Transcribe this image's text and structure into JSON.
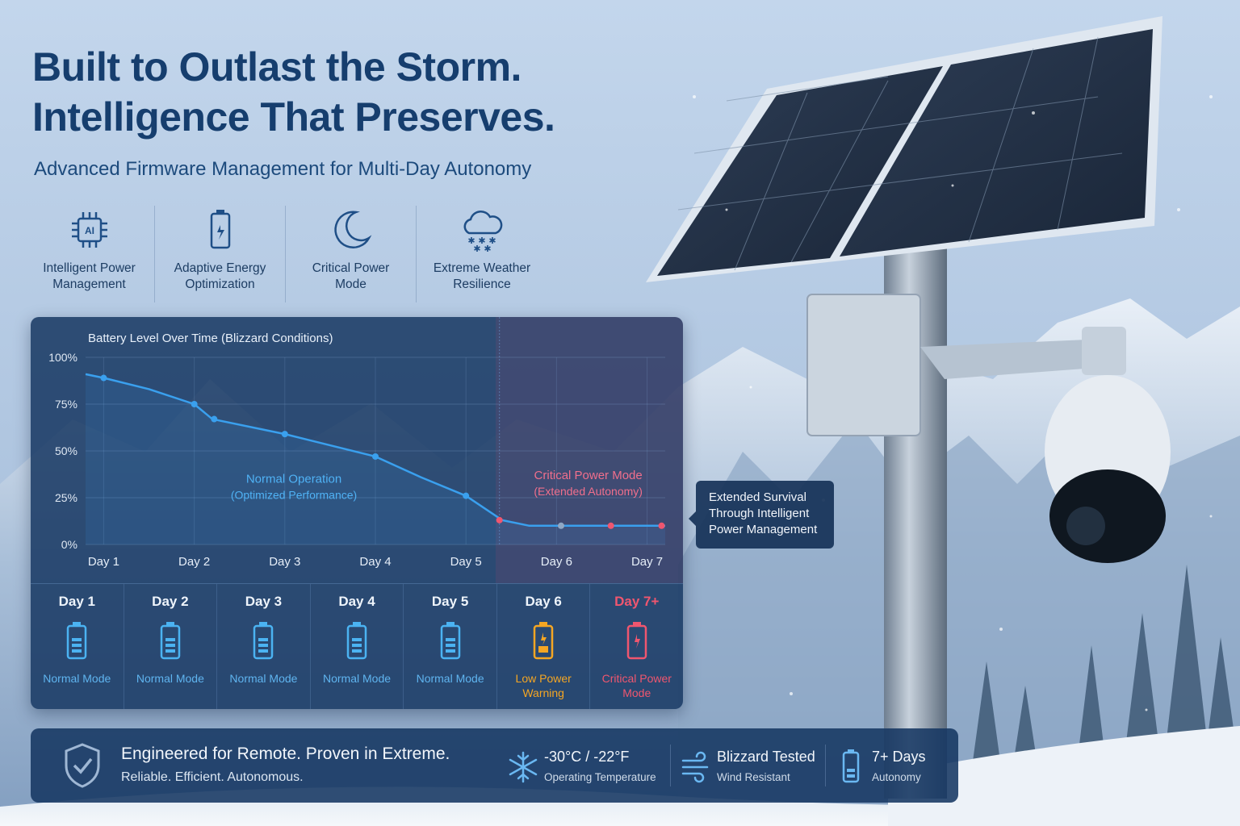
{
  "headline": {
    "line1": "Built to Outlast the Storm.",
    "line2": "Intelligence That Preserves."
  },
  "subheadline": "Advanced Firmware Management for Multi-Day Autonomy",
  "features": [
    {
      "icon": "ai-chip-icon",
      "line1": "Intelligent Power",
      "line2": "Management"
    },
    {
      "icon": "battery-icon",
      "line1": "Adaptive Energy",
      "line2": "Optimization"
    },
    {
      "icon": "crescent-moon-icon",
      "line1": "Critical Power",
      "line2": "Mode"
    },
    {
      "icon": "snow-cloud-icon",
      "line1": "Extreme Weather",
      "line2": "Resilience"
    }
  ],
  "chart_data": {
    "type": "line",
    "title": "Battery Level Over Time (Blizzard Conditions)",
    "x_ticks": [
      "Day 1",
      "Day 2",
      "Day 3",
      "Day 4",
      "Day 5",
      "Day 6",
      "Day 7"
    ],
    "y_ticks": [
      "100%",
      "75%",
      "50%",
      "25%",
      "0%"
    ],
    "ylim": [
      0,
      100
    ],
    "xlim": [
      0.8,
      7.2
    ],
    "grid": true,
    "series": [
      {
        "points": [
          [
            0.8,
            91
          ],
          [
            1.0,
            89
          ],
          [
            1.5,
            83
          ],
          [
            2.0,
            75
          ],
          [
            2.2,
            67
          ],
          [
            3.0,
            59
          ],
          [
            4.0,
            47
          ],
          [
            4.5,
            36
          ],
          [
            5.0,
            26
          ],
          [
            5.4,
            13
          ],
          [
            5.7,
            10
          ],
          [
            6.0,
            10
          ],
          [
            6.5,
            10
          ],
          [
            7.0,
            10
          ],
          [
            7.2,
            10
          ]
        ],
        "markers": [
          [
            1.0,
            89
          ],
          [
            2.0,
            75
          ],
          [
            2.22,
            67
          ],
          [
            3.0,
            59
          ],
          [
            4.0,
            47
          ],
          [
            5.0,
            26
          ]
        ],
        "critical_markers": [
          [
            5.37,
            13
          ],
          [
            6.6,
            10
          ],
          [
            7.16,
            10
          ]
        ],
        "neutral_markers": [
          [
            6.05,
            10
          ]
        ],
        "color": "#3aa0ee"
      }
    ],
    "regions": [
      {
        "label": "Normal Operation",
        "sublabel": "(Optimized Performance)",
        "color": "#4fb2f5"
      },
      {
        "label": "Critical Power Mode",
        "sublabel": "(Extended Autonomy)",
        "color": "#f06f8c",
        "start_x": 5.37
      }
    ]
  },
  "callout": "Extended Survival Through Intelligent Power Management",
  "days": [
    {
      "name": "Day 1",
      "mode": "Normal Mode",
      "status": "normal"
    },
    {
      "name": "Day 2",
      "mode": "Normal Mode",
      "status": "normal"
    },
    {
      "name": "Day 3",
      "mode": "Normal Mode",
      "status": "normal"
    },
    {
      "name": "Day 4",
      "mode": "Normal Mode",
      "status": "normal"
    },
    {
      "name": "Day 5",
      "mode": "Normal Mode",
      "status": "normal"
    },
    {
      "name": "Day 6",
      "mode": "Low Power Warning",
      "status": "warning"
    },
    {
      "name": "Day 7+",
      "mode": "Critical Power Mode",
      "status": "critical"
    }
  ],
  "status_colors": {
    "normal": "#4bb3f2",
    "warning": "#f5a623",
    "critical": "#f0566f"
  },
  "footer": {
    "icon": "shield-check-icon",
    "title": "Engineered for Remote. Proven in Extreme.",
    "subtitle": "Reliable. Efficient. Autonomous.",
    "stats": [
      {
        "icon": "snowflake-icon",
        "value": "-30°C / -22°F",
        "label": "Operating Temperature"
      },
      {
        "icon": "wind-icon",
        "value": "Blizzard Tested",
        "label": "Wind Resistant"
      },
      {
        "icon": "battery-full-icon",
        "value": "7+ Days",
        "label": "Autonomy"
      }
    ]
  }
}
